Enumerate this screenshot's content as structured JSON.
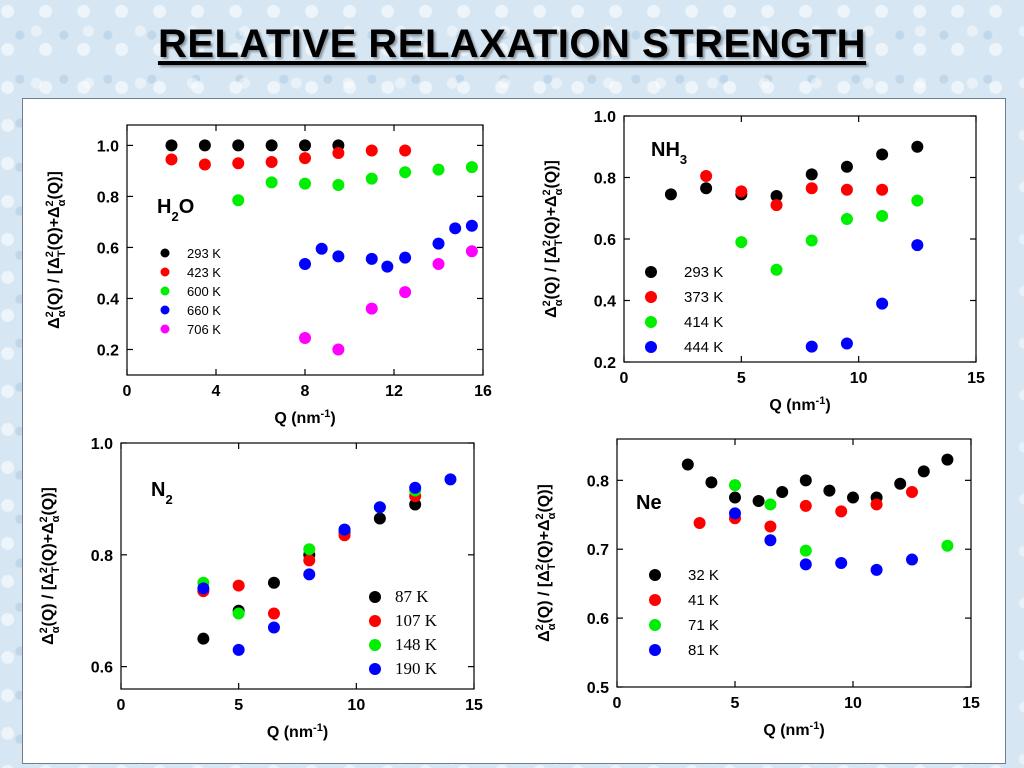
{
  "page": {
    "title": "RELATIVE RELAXATION STRENGTH"
  },
  "chart_data": [
    {
      "type": "scatter",
      "species_label": [
        "H",
        "2",
        "O"
      ],
      "xlabel": "Q (nm",
      "xlabel_sup": "-1",
      "xlabel_end": ")",
      "ylabel": "Δα²(Q) / [ΔT²(Q)+Δα²(Q)]",
      "xlim": [
        0,
        16
      ],
      "ylim": [
        0.1,
        1.08
      ],
      "xticks": [
        0,
        4,
        8,
        12,
        16
      ],
      "xtick_labels": [
        "0",
        "4",
        "8",
        "12",
        "16"
      ],
      "yticks": [
        0.2,
        0.4,
        0.6,
        0.8,
        1.0
      ],
      "ytick_labels": [
        "0.2",
        "0.4",
        "0.6",
        "0.8",
        "1.0"
      ],
      "legend_style": "small",
      "series": [
        {
          "name": "293 K",
          "color": "#000000",
          "points": [
            [
              2,
              1.0
            ],
            [
              3.5,
              1.0
            ],
            [
              5,
              1.0
            ],
            [
              6.5,
              1.0
            ],
            [
              8,
              1.0
            ],
            [
              9.5,
              1.0
            ]
          ]
        },
        {
          "name": "423 K",
          "color": "#ff0000",
          "points": [
            [
              2,
              0.945
            ],
            [
              3.5,
              0.925
            ],
            [
              5,
              0.93
            ],
            [
              6.5,
              0.935
            ],
            [
              8,
              0.95
            ],
            [
              9.5,
              0.97
            ],
            [
              11,
              0.98
            ],
            [
              12.5,
              0.98
            ]
          ]
        },
        {
          "name": "600 K",
          "color": "#00ee00",
          "points": [
            [
              5,
              0.785
            ],
            [
              6.5,
              0.855
            ],
            [
              8,
              0.85
            ],
            [
              9.5,
              0.845
            ],
            [
              11,
              0.87
            ],
            [
              12.5,
              0.895
            ],
            [
              14,
              0.905
            ],
            [
              15.5,
              0.915
            ]
          ]
        },
        {
          "name": "660 K",
          "color": "#0000ff",
          "points": [
            [
              8,
              0.535
            ],
            [
              8.75,
              0.595
            ],
            [
              9.5,
              0.565
            ],
            [
              11,
              0.555
            ],
            [
              11.7,
              0.525
            ],
            [
              12.5,
              0.56
            ],
            [
              14,
              0.615
            ],
            [
              14.75,
              0.675
            ],
            [
              15.5,
              0.685
            ]
          ]
        },
        {
          "name": "706 K",
          "color": "#ff00ff",
          "points": [
            [
              8,
              0.245
            ],
            [
              9.5,
              0.2
            ],
            [
              11,
              0.36
            ],
            [
              12.5,
              0.425
            ],
            [
              14,
              0.535
            ],
            [
              15.5,
              0.585
            ]
          ]
        }
      ]
    },
    {
      "type": "scatter",
      "species_label": [
        "NH",
        "3",
        ""
      ],
      "xlabel": "Q (nm",
      "xlabel_sup": "-1",
      "xlabel_end": ")",
      "ylabel": "Δα²(Q) / [ΔT²(Q)+Δα²(Q)]",
      "xlim": [
        0,
        15
      ],
      "ylim": [
        0.2,
        1.0
      ],
      "xticks": [
        0,
        5,
        10,
        15
      ],
      "xtick_labels": [
        "0",
        "5",
        "10",
        "15"
      ],
      "yticks": [
        0.2,
        0.4,
        0.6,
        0.8,
        1.0
      ],
      "ytick_labels": [
        "0.2",
        "0.4",
        "0.6",
        "0.8",
        "1.0"
      ],
      "legend_style": "normal",
      "series": [
        {
          "name": "293 K",
          "color": "#000000",
          "points": [
            [
              2,
              0.745
            ],
            [
              3.5,
              0.765
            ],
            [
              5,
              0.745
            ],
            [
              6.5,
              0.74
            ],
            [
              8,
              0.81
            ],
            [
              9.5,
              0.835
            ],
            [
              11,
              0.875
            ],
            [
              12.5,
              0.9
            ]
          ]
        },
        {
          "name": "373 K",
          "color": "#ff0000",
          "points": [
            [
              3.5,
              0.805
            ],
            [
              5,
              0.755
            ],
            [
              6.5,
              0.71
            ],
            [
              8,
              0.765
            ],
            [
              9.5,
              0.76
            ],
            [
              11,
              0.76
            ]
          ]
        },
        {
          "name": "414 K",
          "color": "#00ee00",
          "points": [
            [
              5,
              0.59
            ],
            [
              6.5,
              0.5
            ],
            [
              8,
              0.595
            ],
            [
              9.5,
              0.665
            ],
            [
              11,
              0.675
            ],
            [
              12.5,
              0.725
            ]
          ]
        },
        {
          "name": "444 K",
          "color": "#0000ff",
          "points": [
            [
              8,
              0.25
            ],
            [
              9.5,
              0.26
            ],
            [
              11,
              0.39
            ],
            [
              12.5,
              0.58
            ]
          ]
        }
      ]
    },
    {
      "type": "scatter",
      "species_label": [
        "N",
        "2",
        ""
      ],
      "xlabel": "Q (nm",
      "xlabel_sup": "-1",
      "xlabel_end": ")",
      "ylabel": "Δα²(Q) / [ΔT²(Q)+Δα²(Q)]",
      "xlim": [
        0,
        15
      ],
      "ylim": [
        0.56,
        1.0
      ],
      "xticks": [
        0,
        5,
        10,
        15
      ],
      "xtick_labels": [
        "0",
        "5",
        "10",
        "15"
      ],
      "yticks": [
        0.6,
        0.8,
        1.0
      ],
      "ytick_labels": [
        "0.6",
        "0.8",
        "1.0"
      ],
      "legend_style": "serif",
      "series": [
        {
          "name": "87 K",
          "color": "#000000",
          "points": [
            [
              3.5,
              0.65
            ],
            [
              5,
              0.7
            ],
            [
              6.5,
              0.75
            ],
            [
              8,
              0.8
            ],
            [
              9.5,
              0.84
            ],
            [
              11,
              0.865
            ],
            [
              12.5,
              0.89
            ]
          ]
        },
        {
          "name": "107 K",
          "color": "#ff0000",
          "points": [
            [
              3.5,
              0.735
            ],
            [
              5,
              0.745
            ],
            [
              6.5,
              0.695
            ],
            [
              8,
              0.79
            ],
            [
              9.5,
              0.835
            ],
            [
              12.5,
              0.905
            ]
          ]
        },
        {
          "name": "148 K",
          "color": "#00ee00",
          "points": [
            [
              3.5,
              0.75
            ],
            [
              5,
              0.695
            ],
            [
              8,
              0.81
            ],
            [
              9.5,
              0.845
            ],
            [
              11,
              0.885
            ],
            [
              12.5,
              0.915
            ]
          ]
        },
        {
          "name": "190 K",
          "color": "#0000ff",
          "points": [
            [
              3.5,
              0.74
            ],
            [
              5,
              0.63
            ],
            [
              6.5,
              0.67
            ],
            [
              8,
              0.765
            ],
            [
              9.5,
              0.845
            ],
            [
              11,
              0.885
            ],
            [
              12.5,
              0.92
            ],
            [
              14,
              0.935
            ]
          ]
        }
      ]
    },
    {
      "type": "scatter",
      "species_label": [
        "Ne",
        "",
        ""
      ],
      "xlabel": "Q (nm",
      "xlabel_sup": "-1",
      "xlabel_end": ")",
      "ylabel": "Δα²(Q) / [ΔT²(Q)+Δα²(Q)]",
      "xlim": [
        0,
        15
      ],
      "ylim": [
        0.5,
        0.86
      ],
      "xticks": [
        0,
        5,
        10,
        15
      ],
      "xtick_labels": [
        "0",
        "5",
        "10",
        "15"
      ],
      "yticks": [
        0.5,
        0.6,
        0.7,
        0.8
      ],
      "ytick_labels": [
        "0.5",
        "0.6",
        "0.7",
        "0.8"
      ],
      "legend_style": "normal",
      "series": [
        {
          "name": "32 K",
          "color": "#000000",
          "points": [
            [
              3,
              0.823
            ],
            [
              4,
              0.797
            ],
            [
              5,
              0.775
            ],
            [
              6,
              0.77
            ],
            [
              7,
              0.783
            ],
            [
              8,
              0.8
            ],
            [
              9,
              0.785
            ],
            [
              10,
              0.775
            ],
            [
              11,
              0.775
            ],
            [
              12,
              0.795
            ],
            [
              13,
              0.813
            ],
            [
              14,
              0.83
            ]
          ]
        },
        {
          "name": "41 K",
          "color": "#ff0000",
          "points": [
            [
              3.5,
              0.738
            ],
            [
              5,
              0.745
            ],
            [
              6.5,
              0.733
            ],
            [
              8,
              0.763
            ],
            [
              9.5,
              0.755
            ],
            [
              11,
              0.765
            ],
            [
              12.5,
              0.783
            ]
          ]
        },
        {
          "name": "71 K",
          "color": "#00ee00",
          "points": [
            [
              5,
              0.793
            ],
            [
              6.5,
              0.765
            ],
            [
              8,
              0.698
            ],
            [
              14,
              0.705
            ]
          ]
        },
        {
          "name": "81 K",
          "color": "#0000ff",
          "points": [
            [
              5,
              0.752
            ],
            [
              6.5,
              0.713
            ],
            [
              8,
              0.678
            ],
            [
              9.5,
              0.68
            ],
            [
              11,
              0.67
            ],
            [
              12.5,
              0.685
            ]
          ]
        }
      ]
    }
  ]
}
